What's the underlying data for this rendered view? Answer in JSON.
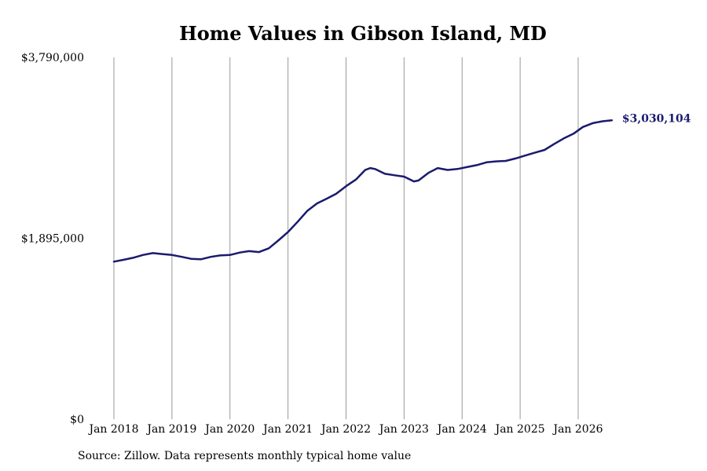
{
  "chart_data": {
    "type": "line",
    "title": "Home Values in Gibson Island, MD",
    "xlabel": "",
    "ylabel": "",
    "ylim": [
      0,
      3790000
    ],
    "y_ticks": [
      {
        "value": 0,
        "label": "$0"
      },
      {
        "value": 1895000,
        "label": "$1,895,000"
      },
      {
        "value": 3790000,
        "label": "$3,790,000"
      }
    ],
    "x_ticks": [
      {
        "value": 2018.0,
        "label": "Jan 2018"
      },
      {
        "value": 2019.0,
        "label": "Jan 2019"
      },
      {
        "value": 2020.0,
        "label": "Jan 2020"
      },
      {
        "value": 2021.0,
        "label": "Jan 2021"
      },
      {
        "value": 2022.0,
        "label": "Jan 2022"
      },
      {
        "value": 2023.0,
        "label": "Jan 2023"
      },
      {
        "value": 2024.0,
        "label": "Jan 2024"
      },
      {
        "value": 2025.0,
        "label": "Jan 2025"
      },
      {
        "value": 2026.0,
        "label": "Jan 2026"
      }
    ],
    "grid": "vertical",
    "colors": {
      "line": "#1a1a6e",
      "grid": "#999999",
      "end_label": "#1a1a6e"
    },
    "series": [
      {
        "x": [
          2018.0,
          2018.17,
          2018.33,
          2018.5,
          2018.67,
          2018.83,
          2019.0,
          2019.17,
          2019.33,
          2019.5,
          2019.67,
          2019.83,
          2020.0,
          2020.17,
          2020.33,
          2020.5,
          2020.67,
          2020.83,
          2021.0,
          2021.17,
          2021.33,
          2021.5,
          2021.67,
          2021.83,
          2022.0,
          2022.17,
          2022.33,
          2022.42,
          2022.5,
          2022.67,
          2022.83,
          2023.0,
          2023.17,
          2023.25,
          2023.42,
          2023.58,
          2023.75,
          2023.92,
          2024.08,
          2024.25,
          2024.42,
          2024.58,
          2024.75,
          2024.92,
          2025.08,
          2025.25,
          2025.42,
          2025.58,
          2025.75,
          2025.92,
          2026.08,
          2026.25,
          2026.42,
          2026.58
        ],
        "y": [
          1650000,
          1670000,
          1690000,
          1720000,
          1740000,
          1730000,
          1720000,
          1700000,
          1680000,
          1675000,
          1700000,
          1715000,
          1720000,
          1745000,
          1760000,
          1750000,
          1790000,
          1870000,
          1960000,
          2070000,
          2180000,
          2260000,
          2310000,
          2360000,
          2440000,
          2510000,
          2610000,
          2630000,
          2620000,
          2570000,
          2555000,
          2540000,
          2490000,
          2500000,
          2580000,
          2630000,
          2610000,
          2620000,
          2640000,
          2660000,
          2690000,
          2700000,
          2705000,
          2730000,
          2760000,
          2790000,
          2820000,
          2880000,
          2940000,
          2990000,
          3060000,
          3100000,
          3120000,
          3130000
        ]
      }
    ],
    "end_label": "$3,030,104"
  },
  "source_note": "Source: Zillow. Data represents monthly typical home value"
}
